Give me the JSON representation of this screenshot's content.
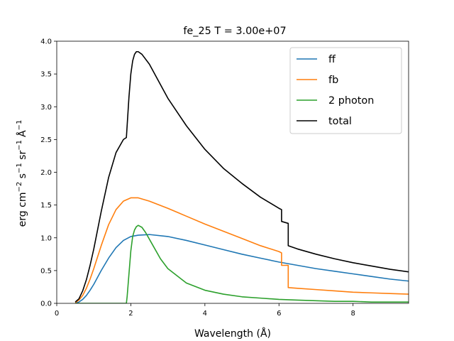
{
  "chart_data": {
    "type": "line",
    "title": "fe_25  T =   3.00e+07",
    "xlabel": "Wavelength (Å)",
    "ylabel_main": "erg cm",
    "ylabel_parts": [
      "−2",
      " s",
      "−1",
      " sr",
      "−1",
      "Å",
      "−1"
    ],
    "xlim": [
      0,
      9.5
    ],
    "ylim": [
      0,
      4.0
    ],
    "xticks": [
      0,
      2,
      4,
      6,
      8
    ],
    "yticks": [
      0.0,
      0.5,
      1.0,
      1.5,
      2.0,
      2.5,
      3.0,
      3.5,
      4.0
    ],
    "grid": false,
    "legend_position": "top-right",
    "series": [
      {
        "name": "ff",
        "color": "#1f77b4",
        "x": [
          0.5,
          0.6,
          0.7,
          0.8,
          0.9,
          1.0,
          1.2,
          1.4,
          1.6,
          1.8,
          2.0,
          2.2,
          2.5,
          3.0,
          3.5,
          4.0,
          4.5,
          5.0,
          5.5,
          6.0,
          6.5,
          7.0,
          7.5,
          8.0,
          8.5,
          9.0,
          9.5
        ],
        "y": [
          0.0,
          0.02,
          0.06,
          0.12,
          0.2,
          0.29,
          0.5,
          0.69,
          0.85,
          0.96,
          1.02,
          1.04,
          1.05,
          1.02,
          0.96,
          0.89,
          0.82,
          0.75,
          0.69,
          0.63,
          0.58,
          0.53,
          0.49,
          0.45,
          0.41,
          0.37,
          0.34
        ]
      },
      {
        "name": "fb",
        "color": "#ff7f0e",
        "x": [
          0.5,
          0.6,
          0.7,
          0.8,
          0.9,
          1.0,
          1.2,
          1.4,
          1.6,
          1.8,
          2.0,
          2.2,
          2.5,
          3.0,
          3.5,
          4.0,
          4.5,
          5.0,
          5.5,
          6.0,
          6.07,
          6.07,
          6.25,
          6.25,
          6.5,
          7.0,
          7.5,
          8.0,
          8.5,
          9.0,
          9.5
        ],
        "y": [
          0.01,
          0.05,
          0.12,
          0.23,
          0.37,
          0.53,
          0.88,
          1.2,
          1.43,
          1.56,
          1.61,
          1.61,
          1.56,
          1.45,
          1.33,
          1.21,
          1.1,
          0.99,
          0.88,
          0.79,
          0.77,
          0.58,
          0.58,
          0.24,
          0.23,
          0.21,
          0.19,
          0.17,
          0.16,
          0.15,
          0.14
        ]
      },
      {
        "name": "2 photon",
        "color": "#2ca02c",
        "x": [
          0.5,
          1.88,
          1.9,
          1.95,
          2.0,
          2.05,
          2.1,
          2.15,
          2.2,
          2.3,
          2.4,
          2.6,
          2.8,
          3.0,
          3.5,
          4.0,
          4.5,
          5.0,
          5.5,
          6.0,
          6.5,
          7.0,
          7.5,
          8.0,
          8.5,
          9.0,
          9.5
        ],
        "y": [
          0.0,
          0.0,
          0.1,
          0.45,
          0.8,
          1.02,
          1.12,
          1.17,
          1.19,
          1.16,
          1.08,
          0.88,
          0.68,
          0.53,
          0.31,
          0.2,
          0.14,
          0.1,
          0.08,
          0.06,
          0.05,
          0.04,
          0.03,
          0.03,
          0.02,
          0.02,
          0.02
        ]
      },
      {
        "name": "total",
        "color": "#000000",
        "x": [
          0.5,
          0.6,
          0.7,
          0.8,
          0.9,
          1.0,
          1.2,
          1.4,
          1.6,
          1.8,
          1.88,
          1.95,
          2.0,
          2.05,
          2.1,
          2.15,
          2.2,
          2.3,
          2.5,
          3.0,
          3.5,
          4.0,
          4.5,
          5.0,
          5.5,
          6.0,
          6.07,
          6.07,
          6.25,
          6.25,
          6.5,
          7.0,
          7.5,
          8.0,
          8.5,
          9.0,
          9.5
        ],
        "y": [
          0.02,
          0.07,
          0.19,
          0.36,
          0.58,
          0.83,
          1.4,
          1.92,
          2.3,
          2.5,
          2.53,
          3.15,
          3.5,
          3.7,
          3.8,
          3.84,
          3.84,
          3.8,
          3.65,
          3.13,
          2.71,
          2.35,
          2.06,
          1.83,
          1.62,
          1.45,
          1.43,
          1.25,
          1.22,
          0.88,
          0.83,
          0.75,
          0.68,
          0.62,
          0.57,
          0.52,
          0.48
        ]
      }
    ]
  }
}
